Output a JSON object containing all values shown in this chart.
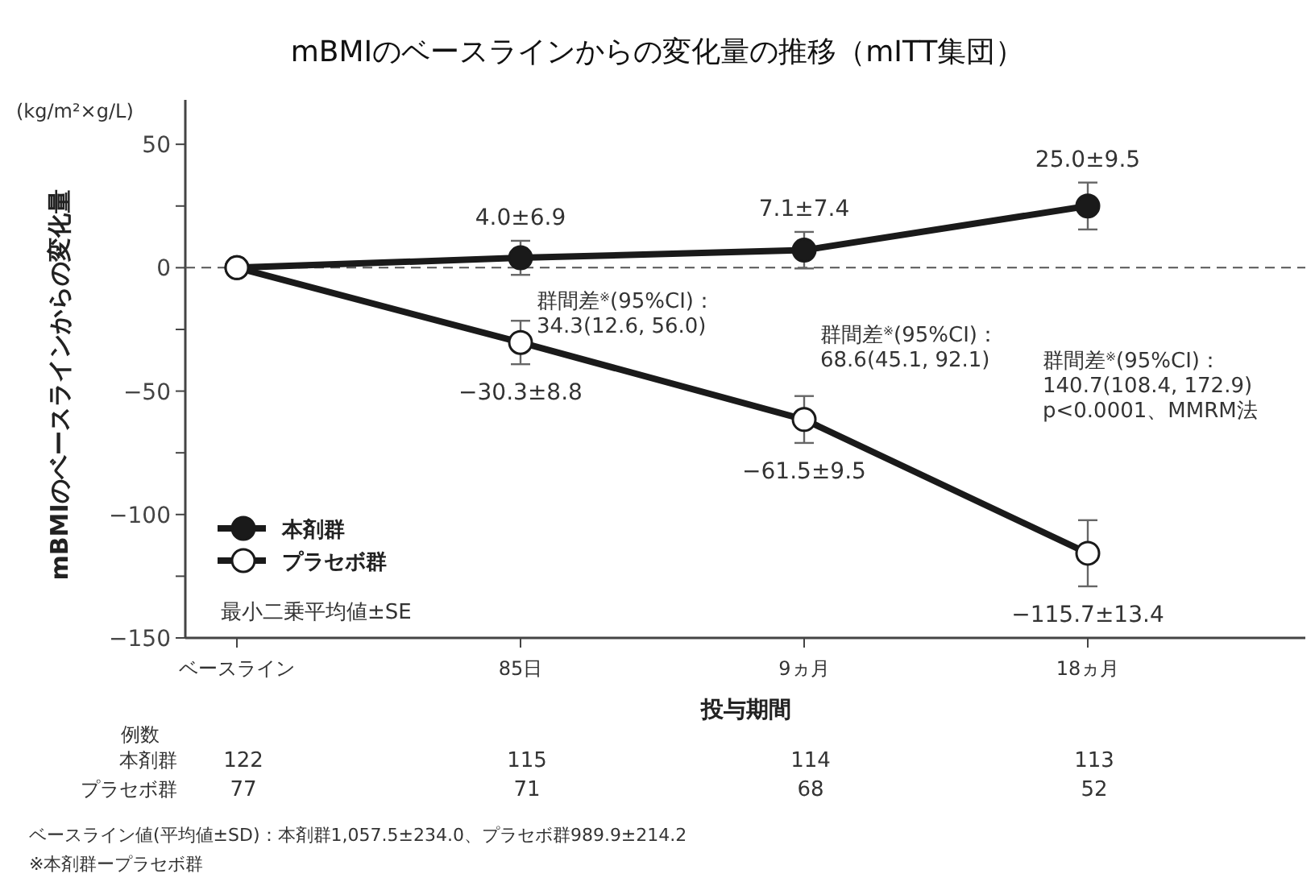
{
  "chart_data": {
    "type": "line",
    "title": "mBMIのベースラインからの変化量の推移（mITT集団）",
    "xlabel": "投与期間",
    "ylabel": "mBMIのベースラインからの変化量",
    "categories": [
      "ベースライン",
      "85日",
      "9ヵ月",
      "18ヵ月"
    ],
    "ylim": [
      -150,
      68
    ],
    "yticks": [
      -150,
      {
        "value": -125,
        "label": null
      },
      -100,
      {
        "value": -75,
        "label": null
      },
      -50,
      {
        "value": -25,
        "label": null
      },
      0,
      {
        "value": 25,
        "label": null
      },
      50
    ],
    "series": [
      {
        "name": "本剤群",
        "color": "#1a1a1a",
        "values": [
          0,
          4.0,
          7.1,
          25.0
        ],
        "errors": [
          null,
          6.9,
          7.4,
          9.5
        ],
        "value_labels": [
          null,
          "4.0±6.9",
          "7.1±7.4",
          "25.0±9.5"
        ]
      },
      {
        "name": "プラセボ群",
        "color": "#1a1a1a",
        "values": [
          0,
          -30.3,
          -61.5,
          -115.7
        ],
        "errors": [
          null,
          8.8,
          9.5,
          13.4
        ],
        "value_labels": [
          null,
          "−30.3±8.8",
          "−61.5±9.5",
          "−115.7±13.4"
        ]
      }
    ],
    "marker": "circle",
    "grid": false,
    "legend": "bottom left",
    "ref_lines": [
      {
        "axis": "y",
        "value": 0,
        "line_style": "dashed",
        "color": "#555555"
      }
    ],
    "annotations": [
      "(kg/m²×g/L)",
      "最小二乗平均値±SE",
      "群間差$^{※}$(95%CI)：\n34.3(12.6, 56.0)",
      "群間差$^{※}$(95%CI)：\n68.6(45.1, 92.1)",
      "群間差$^{※}$(95%CI)：\n140.7(108.4, 172.9)\np<0.0001、MMRM法",
      "例数",
      "本剤群",
      "プラセボ群",
      "122",
      "115",
      "114",
      "113",
      "77",
      "71",
      "68",
      "52",
      "ベースライン値(平均値±SD)：本剤群1,057.5±234.0、プラセボ群989.9±214.2",
      "※本剤群ープラセボ群"
    ]
  }
}
